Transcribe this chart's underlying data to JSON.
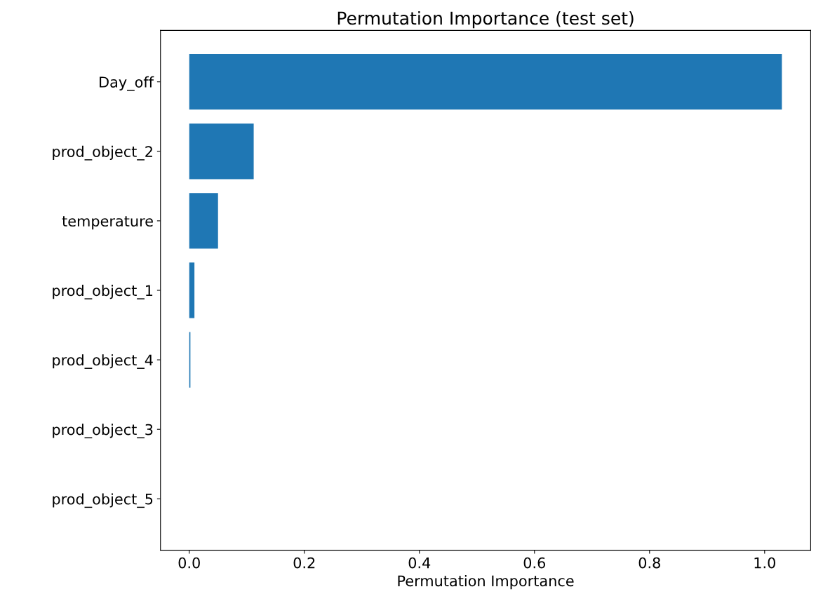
{
  "chart_data": {
    "type": "bar",
    "orientation": "horizontal",
    "title": "Permutation Importance (test set)",
    "xlabel": "Permutation Importance",
    "categories": [
      "Day_off",
      "prod_object_2",
      "temperature",
      "prod_object_1",
      "prod_object_4",
      "prod_object_3",
      "prod_object_5"
    ],
    "values": [
      1.03,
      0.112,
      0.05,
      0.009,
      0.002,
      0,
      0
    ],
    "color": "#1f77b4",
    "xlim": [
      -0.05,
      1.08
    ],
    "xticks": [
      {
        "value": 0,
        "label": "0.0"
      },
      0.2,
      0.4,
      0.6,
      0.8,
      {
        "value": 1,
        "label": "1.0"
      }
    ],
    "grid": false
  }
}
